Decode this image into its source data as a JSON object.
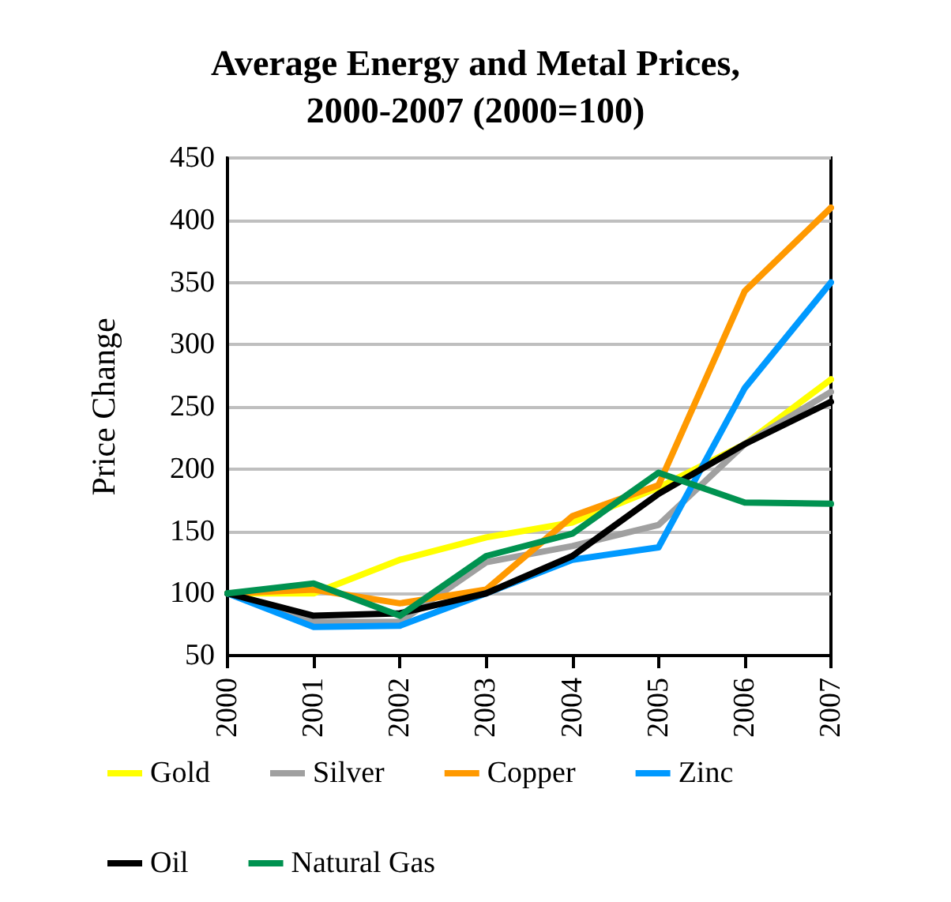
{
  "chart_data": {
    "type": "line",
    "title": "Average Energy and Metal Prices,\n2000-2007 (2000=100)",
    "ylabel": "Price Change",
    "categories": [
      "2000",
      "2001",
      "2002",
      "2003",
      "2004",
      "2005",
      "2006",
      "2007"
    ],
    "series": [
      {
        "name": "Gold",
        "color": "#ffff00",
        "values": [
          100,
          100,
          127,
          145,
          157,
          185,
          220,
          272
        ]
      },
      {
        "name": "Silver",
        "color": "#a0a0a0",
        "values": [
          100,
          77,
          77,
          125,
          138,
          155,
          220,
          262
        ]
      },
      {
        "name": "Copper",
        "color": "#ff9900",
        "values": [
          100,
          103,
          92,
          103,
          162,
          187,
          343,
          410
        ]
      },
      {
        "name": "Zinc",
        "color": "#0099ff",
        "values": [
          100,
          73,
          74,
          100,
          127,
          137,
          265,
          350
        ]
      },
      {
        "name": "Oil",
        "color": "#000000",
        "values": [
          100,
          82,
          84,
          100,
          130,
          180,
          220,
          254
        ]
      },
      {
        "name": "Natural Gas",
        "color": "#009250",
        "values": [
          100,
          108,
          82,
          130,
          148,
          197,
          173,
          172
        ]
      }
    ],
    "ylim": [
      50,
      450
    ],
    "yticks": [
      50,
      100,
      150,
      200,
      250,
      300,
      350,
      400,
      450
    ],
    "grid": "y",
    "legend": "bottom",
    "marker": "none",
    "line_style": "solid"
  }
}
